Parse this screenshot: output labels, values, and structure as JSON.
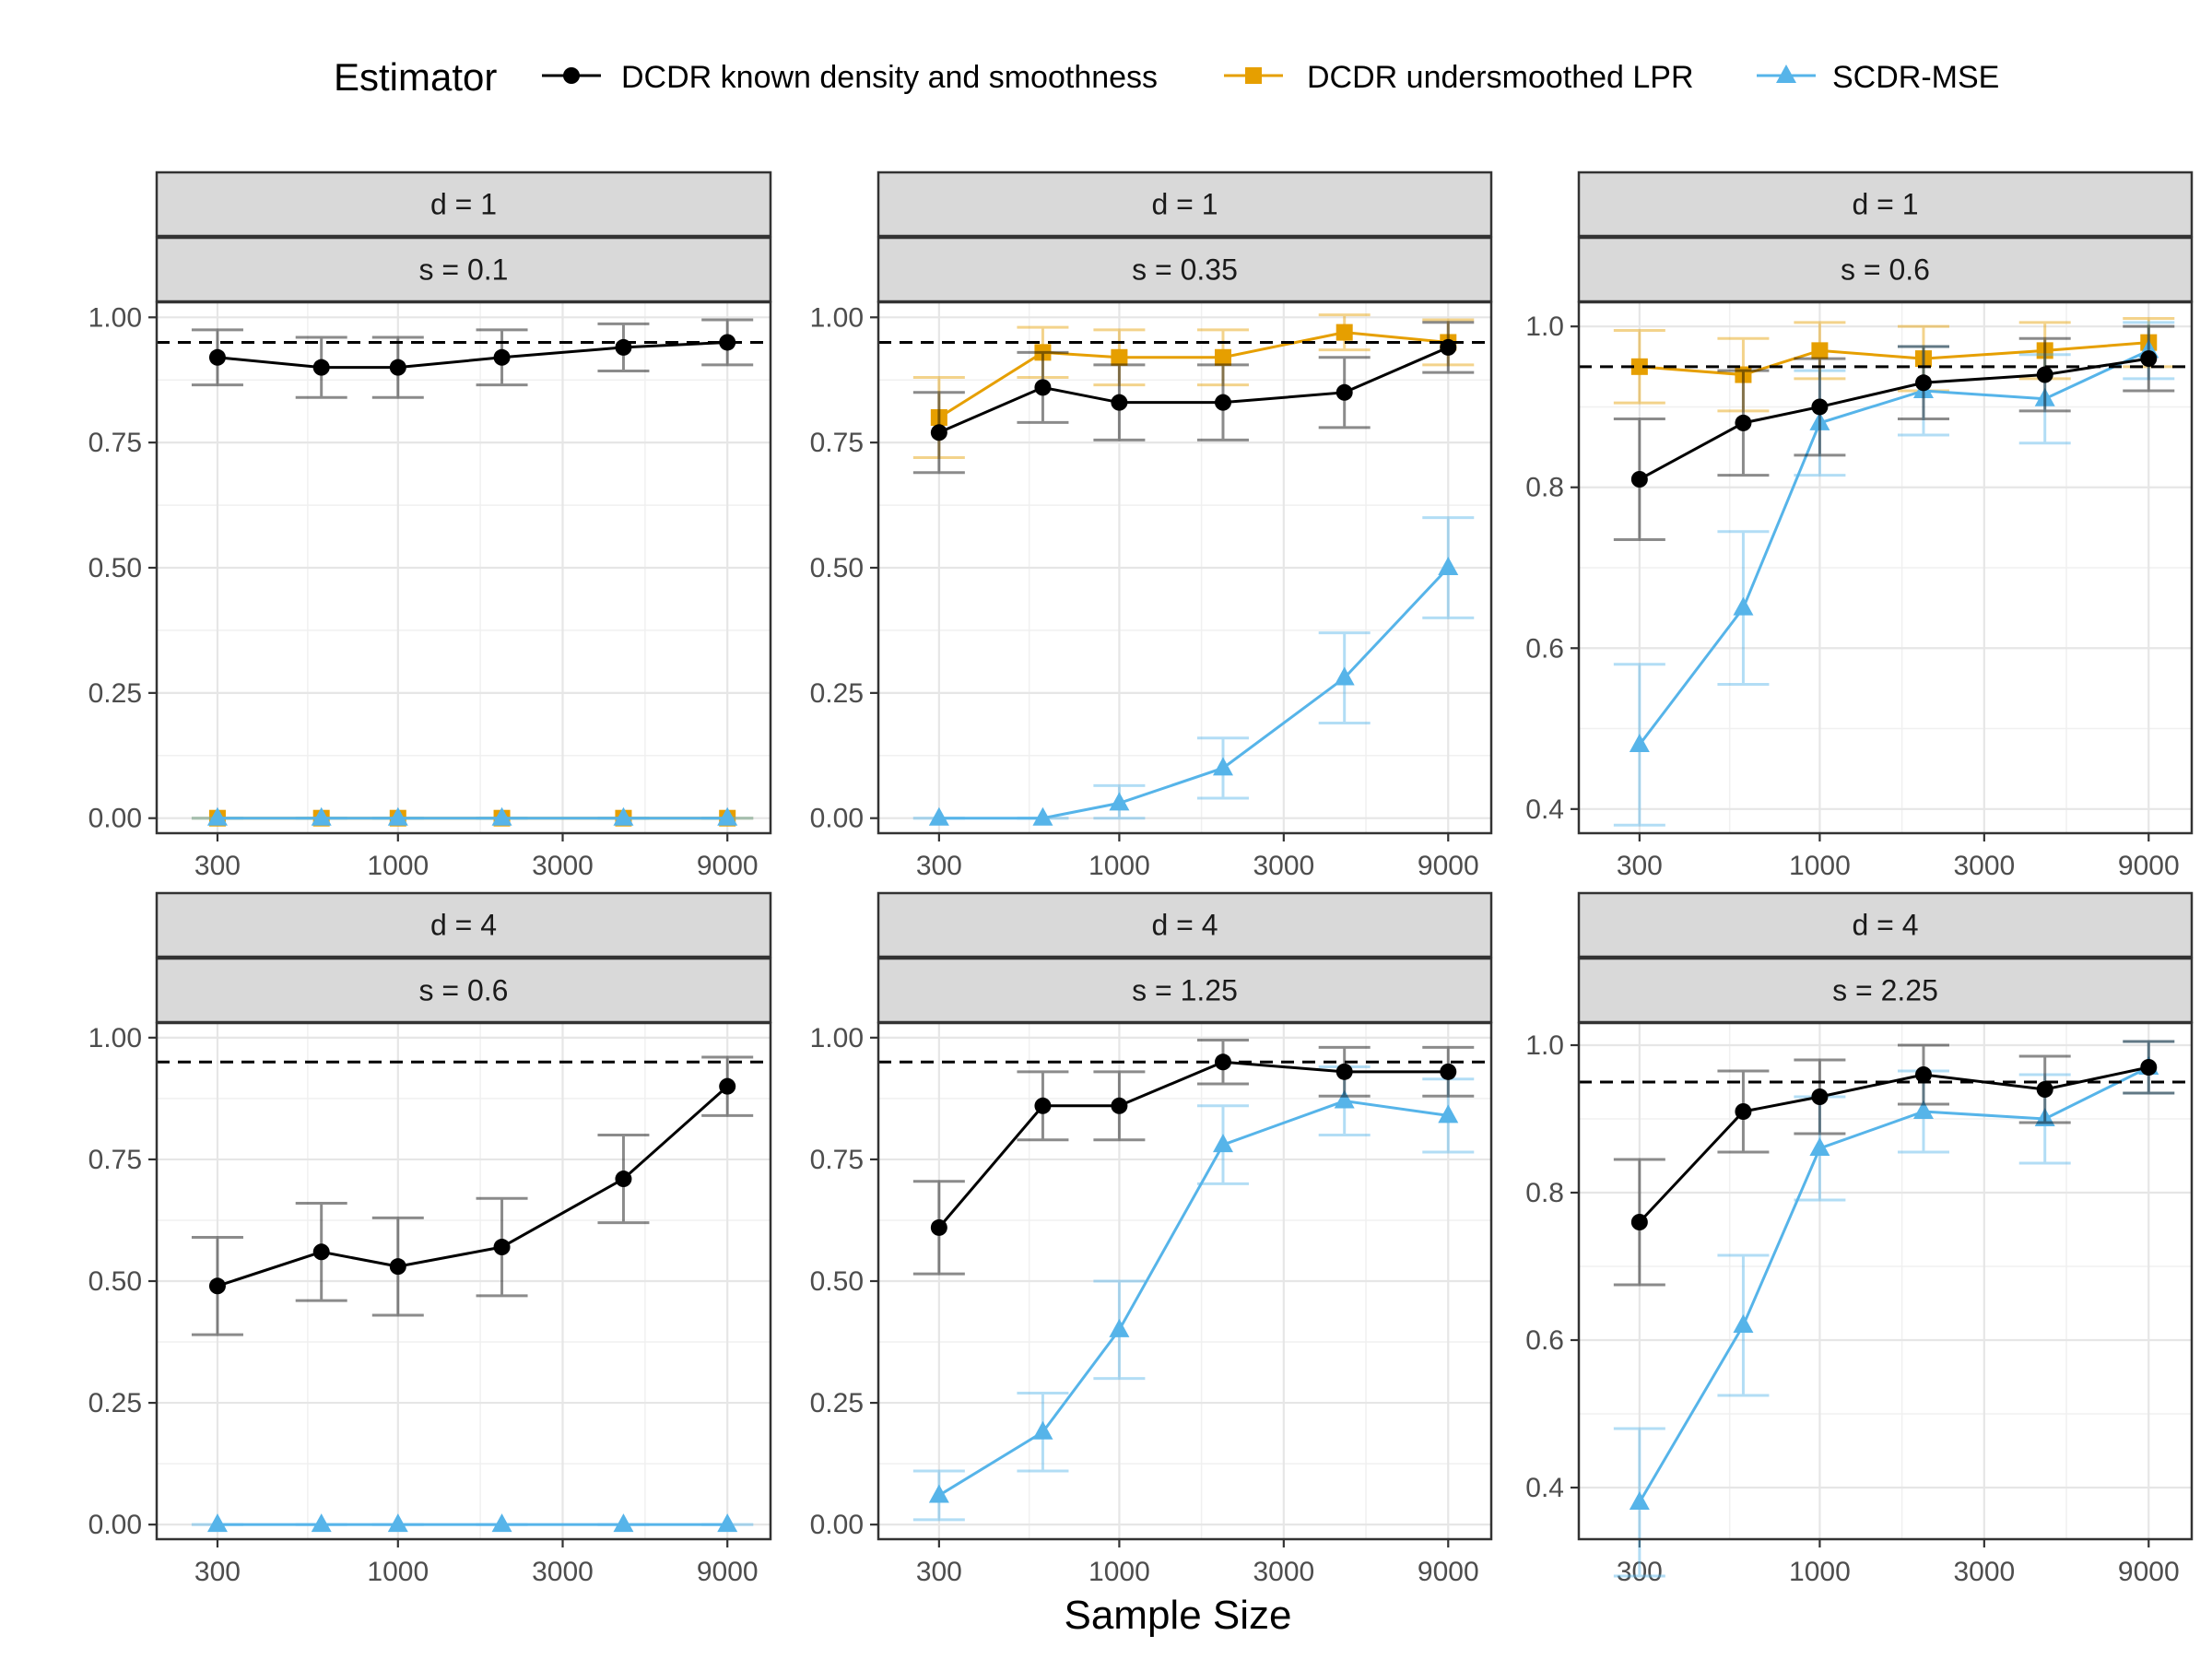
{
  "legend": {
    "title": "Estimator",
    "items": [
      {
        "name": "DCDR known density and smoothness",
        "color": "#000000",
        "shape": "circle"
      },
      {
        "name": "DCDR undersmoothed LPR",
        "color": "#E69F00",
        "shape": "square"
      },
      {
        "name": "SCDR-MSE",
        "color": "#56B4E9",
        "shape": "triangle"
      }
    ]
  },
  "chart_data": [
    {
      "type": "line",
      "strip_top": "d = 1",
      "strip_bottom": "s = 0.1",
      "x": [
        300,
        600,
        1000,
        2000,
        4500,
        9000
      ],
      "x_tick_values": [
        300,
        1000,
        3000,
        9000
      ],
      "x_tick_labels": [
        "300",
        "1000",
        "3000",
        "9000"
      ],
      "y_tick_values": [
        0,
        0.25,
        0.5,
        0.75,
        1.0
      ],
      "y_tick_labels": [
        "0.00",
        "0.25",
        "0.50",
        "0.75",
        "1.00"
      ],
      "ylim": [
        -0.03,
        1.03
      ],
      "reference_line": 0.95,
      "series": [
        {
          "name": "DCDR known density and smoothness",
          "values": [
            0.92,
            0.9,
            0.9,
            0.92,
            0.94,
            0.95
          ],
          "err_low": [
            0.865,
            0.84,
            0.84,
            0.865,
            0.893,
            0.905
          ],
          "err_high": [
            0.975,
            0.96,
            0.96,
            0.975,
            0.987,
            0.995
          ]
        },
        {
          "name": "DCDR undersmoothed LPR",
          "values": [
            0,
            0,
            0,
            0,
            0,
            0
          ],
          "err_low": [
            0,
            0,
            0,
            0,
            0,
            0
          ],
          "err_high": [
            0,
            0,
            0,
            0,
            0,
            0
          ]
        },
        {
          "name": "SCDR-MSE",
          "values": [
            0,
            0,
            0,
            0,
            0,
            0
          ],
          "err_low": [
            0,
            0,
            0,
            0,
            0,
            0
          ],
          "err_high": [
            0,
            0,
            0,
            0,
            0,
            0
          ]
        }
      ]
    },
    {
      "type": "line",
      "strip_top": "d = 1",
      "strip_bottom": "s = 0.35",
      "x": [
        300,
        600,
        1000,
        2000,
        4500,
        9000
      ],
      "x_tick_values": [
        300,
        1000,
        3000,
        9000
      ],
      "x_tick_labels": [
        "300",
        "1000",
        "3000",
        "9000"
      ],
      "y_tick_values": [
        0,
        0.25,
        0.5,
        0.75,
        1.0
      ],
      "y_tick_labels": [
        "0.00",
        "0.25",
        "0.50",
        "0.75",
        "1.00"
      ],
      "ylim": [
        -0.03,
        1.03
      ],
      "reference_line": 0.95,
      "series": [
        {
          "name": "DCDR known density and smoothness",
          "values": [
            0.77,
            0.86,
            0.83,
            0.83,
            0.85,
            0.94
          ],
          "err_low": [
            0.69,
            0.79,
            0.755,
            0.755,
            0.78,
            0.89
          ],
          "err_high": [
            0.85,
            0.93,
            0.905,
            0.905,
            0.92,
            0.99
          ]
        },
        {
          "name": "DCDR undersmoothed LPR",
          "values": [
            0.8,
            0.93,
            0.92,
            0.92,
            0.97,
            0.95
          ],
          "err_low": [
            0.72,
            0.88,
            0.865,
            0.865,
            0.935,
            0.905
          ],
          "err_high": [
            0.88,
            0.98,
            0.975,
            0.975,
            1.005,
            0.995
          ]
        },
        {
          "name": "SCDR-MSE",
          "values": [
            0,
            0,
            0.03,
            0.1,
            0.28,
            0.5
          ],
          "err_low": [
            0,
            0,
            0,
            0.04,
            0.19,
            0.4
          ],
          "err_high": [
            0,
            0,
            0.065,
            0.16,
            0.37,
            0.6
          ]
        }
      ]
    },
    {
      "type": "line",
      "strip_top": "d = 1",
      "strip_bottom": "s = 0.6",
      "x": [
        300,
        600,
        1000,
        2000,
        4500,
        9000
      ],
      "x_tick_values": [
        300,
        1000,
        3000,
        9000
      ],
      "x_tick_labels": [
        "300",
        "1000",
        "3000",
        "9000"
      ],
      "y_tick_values": [
        0.4,
        0.6,
        0.8,
        1.0
      ],
      "y_tick_labels": [
        "0.4",
        "0.6",
        "0.8",
        "1.0"
      ],
      "ylim": [
        0.37,
        1.03
      ],
      "reference_line": 0.95,
      "series": [
        {
          "name": "DCDR known density and smoothness",
          "values": [
            0.81,
            0.88,
            0.9,
            0.93,
            0.94,
            0.96
          ],
          "err_low": [
            0.735,
            0.815,
            0.84,
            0.885,
            0.895,
            0.92
          ],
          "err_high": [
            0.885,
            0.945,
            0.96,
            0.975,
            0.985,
            1.0
          ]
        },
        {
          "name": "DCDR undersmoothed LPR",
          "values": [
            0.95,
            0.94,
            0.97,
            0.96,
            0.97,
            0.98
          ],
          "err_low": [
            0.905,
            0.895,
            0.935,
            0.92,
            0.935,
            0.95
          ],
          "err_high": [
            0.995,
            0.985,
            1.005,
            1.0,
            1.005,
            1.01
          ]
        },
        {
          "name": "SCDR-MSE",
          "values": [
            0.48,
            0.65,
            0.88,
            0.92,
            0.91,
            0.97
          ],
          "err_low": [
            0.38,
            0.555,
            0.815,
            0.865,
            0.855,
            0.935
          ],
          "err_high": [
            0.58,
            0.745,
            0.945,
            0.975,
            0.965,
            1.005
          ]
        }
      ]
    },
    {
      "type": "line",
      "strip_top": "d = 4",
      "strip_bottom": "s = 0.6",
      "x": [
        300,
        600,
        1000,
        2000,
        4500,
        9000
      ],
      "x_tick_values": [
        300,
        1000,
        3000,
        9000
      ],
      "x_tick_labels": [
        "300",
        "1000",
        "3000",
        "9000"
      ],
      "y_tick_values": [
        0,
        0.25,
        0.5,
        0.75,
        1.0
      ],
      "y_tick_labels": [
        "0.00",
        "0.25",
        "0.50",
        "0.75",
        "1.00"
      ],
      "ylim": [
        -0.03,
        1.03
      ],
      "reference_line": 0.95,
      "series": [
        {
          "name": "DCDR known density and smoothness",
          "values": [
            0.49,
            0.56,
            0.53,
            0.57,
            0.71,
            0.9
          ],
          "err_low": [
            0.39,
            0.46,
            0.43,
            0.47,
            0.62,
            0.84
          ],
          "err_high": [
            0.59,
            0.66,
            0.63,
            0.67,
            0.8,
            0.96
          ]
        },
        {
          "name": "SCDR-MSE",
          "values": [
            0,
            0,
            0,
            0,
            0,
            0
          ],
          "err_low": [
            0,
            0,
            0,
            0,
            0,
            0
          ],
          "err_high": [
            0,
            0,
            0,
            0,
            0,
            0
          ]
        }
      ]
    },
    {
      "type": "line",
      "strip_top": "d = 4",
      "strip_bottom": "s = 1.25",
      "x": [
        300,
        600,
        1000,
        2000,
        4500,
        9000
      ],
      "x_tick_values": [
        300,
        1000,
        3000,
        9000
      ],
      "x_tick_labels": [
        "300",
        "1000",
        "3000",
        "9000"
      ],
      "y_tick_values": [
        0,
        0.25,
        0.5,
        0.75,
        1.0
      ],
      "y_tick_labels": [
        "0.00",
        "0.25",
        "0.50",
        "0.75",
        "1.00"
      ],
      "ylim": [
        -0.03,
        1.03
      ],
      "reference_line": 0.95,
      "series": [
        {
          "name": "DCDR known density and smoothness",
          "values": [
            0.61,
            0.86,
            0.86,
            0.95,
            0.93,
            0.93
          ],
          "err_low": [
            0.515,
            0.79,
            0.79,
            0.905,
            0.88,
            0.88
          ],
          "err_high": [
            0.705,
            0.93,
            0.93,
            0.995,
            0.98,
            0.98
          ]
        },
        {
          "name": "SCDR-MSE",
          "values": [
            0.06,
            0.19,
            0.4,
            0.78,
            0.87,
            0.84
          ],
          "err_low": [
            0.01,
            0.11,
            0.3,
            0.7,
            0.8,
            0.765
          ],
          "err_high": [
            0.11,
            0.27,
            0.5,
            0.86,
            0.94,
            0.915
          ]
        }
      ]
    },
    {
      "type": "line",
      "strip_top": "d = 4",
      "strip_bottom": "s = 2.25",
      "x": [
        300,
        600,
        1000,
        2000,
        4500,
        9000
      ],
      "x_tick_values": [
        300,
        1000,
        3000,
        9000
      ],
      "x_tick_labels": [
        "300",
        "1000",
        "3000",
        "9000"
      ],
      "y_tick_values": [
        0.4,
        0.6,
        0.8,
        1.0
      ],
      "y_tick_labels": [
        "0.4",
        "0.6",
        "0.8",
        "1.0"
      ],
      "ylim": [
        0.33,
        1.03
      ],
      "reference_line": 0.95,
      "series": [
        {
          "name": "DCDR known density and smoothness",
          "values": [
            0.76,
            0.91,
            0.93,
            0.96,
            0.94,
            0.97
          ],
          "err_low": [
            0.675,
            0.855,
            0.88,
            0.92,
            0.895,
            0.935
          ],
          "err_high": [
            0.845,
            0.965,
            0.98,
            1.0,
            0.985,
            1.005
          ]
        },
        {
          "name": "SCDR-MSE",
          "values": [
            0.38,
            0.62,
            0.86,
            0.91,
            0.9,
            0.97
          ],
          "err_low": [
            0.28,
            0.525,
            0.79,
            0.855,
            0.84,
            0.935
          ],
          "err_high": [
            0.48,
            0.715,
            0.93,
            0.965,
            0.96,
            1.005
          ]
        }
      ]
    }
  ],
  "x_axis_title": "Sample Size"
}
